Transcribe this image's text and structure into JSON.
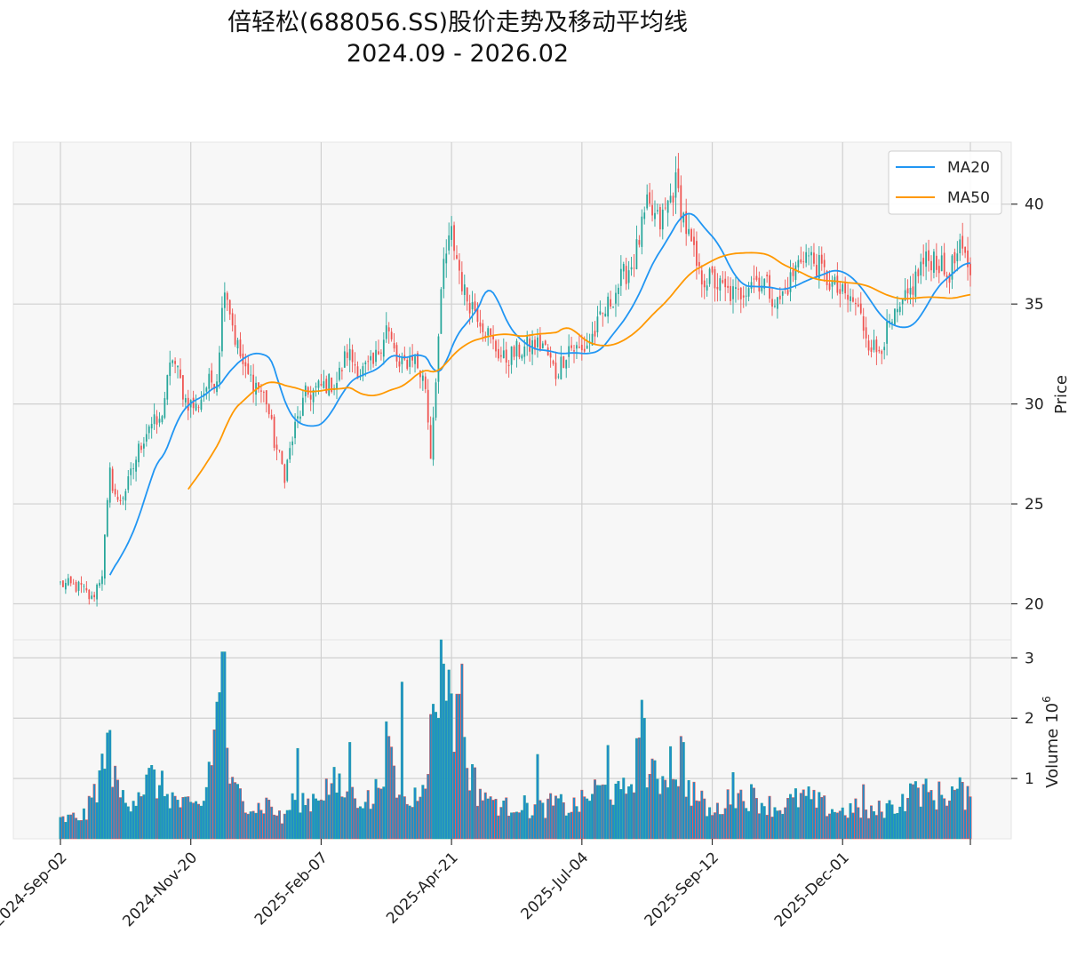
{
  "chart_data": {
    "type": "candlestick",
    "title": "倍轻松(688056.SS)股价走势及移动平均线",
    "subtitle": "2024.09 - 2026.02",
    "ylabel": "Price",
    "volume_label": "Volume",
    "volume_exponent_base": "10",
    "volume_exponent": "6",
    "ylim": [
      18.2,
      43.1
    ],
    "yticks": [
      "20",
      "25",
      "30",
      "35",
      "40"
    ],
    "volume_ylim": [
      0,
      3.3
    ],
    "volume_yticks": [
      "1",
      "2",
      "3"
    ],
    "x_tick_labels": [
      "2024-Sep-02",
      "2024-Nov-20",
      "2025-Feb-07",
      "2025-Apr-21",
      "2025-Jul-04",
      "2025-Sep-12",
      "2025-Dec-01"
    ],
    "x_tick_index": [
      0,
      50,
      100,
      150,
      200,
      250,
      300
    ],
    "n_trading_days": 350,
    "legend": [
      "MA20",
      "MA50"
    ],
    "legend_position": "top-right",
    "colors": {
      "up": "#26a69a",
      "down": "#ef5350",
      "ma20": "#2196f3",
      "ma50": "#ff9800",
      "volume": "#1f8ec9",
      "grid": "#d0d0d0",
      "panel": "#f7f7f7"
    },
    "close_anchors": [
      [
        0,
        21.0
      ],
      [
        8,
        20.8
      ],
      [
        12,
        20.2
      ],
      [
        16,
        21.6
      ],
      [
        19,
        26.5
      ],
      [
        22,
        25.0
      ],
      [
        26,
        26.0
      ],
      [
        30,
        27.7
      ],
      [
        34,
        29.0
      ],
      [
        38,
        29.0
      ],
      [
        43,
        32.4
      ],
      [
        48,
        30.2
      ],
      [
        52,
        29.8
      ],
      [
        56,
        30.9
      ],
      [
        60,
        31.4
      ],
      [
        63,
        36.2
      ],
      [
        67,
        33.3
      ],
      [
        71,
        31.5
      ],
      [
        75,
        31.0
      ],
      [
        79,
        30.2
      ],
      [
        82,
        28.1
      ],
      [
        86,
        26.5
      ],
      [
        90,
        28.8
      ],
      [
        94,
        30.4
      ],
      [
        98,
        30.7
      ],
      [
        102,
        31.0
      ],
      [
        106,
        31.1
      ],
      [
        110,
        32.6
      ],
      [
        115,
        31.6
      ],
      [
        120,
        31.9
      ],
      [
        125,
        33.9
      ],
      [
        130,
        31.7
      ],
      [
        135,
        32.5
      ],
      [
        140,
        30.9
      ],
      [
        142,
        27.5
      ],
      [
        144,
        31.5
      ],
      [
        147,
        37.0
      ],
      [
        150,
        38.5
      ],
      [
        155,
        35.5
      ],
      [
        160,
        34.6
      ],
      [
        165,
        33.2
      ],
      [
        170,
        32.2
      ],
      [
        175,
        32.6
      ],
      [
        180,
        32.9
      ],
      [
        185,
        33.0
      ],
      [
        190,
        31.5
      ],
      [
        195,
        32.9
      ],
      [
        200,
        32.6
      ],
      [
        205,
        33.6
      ],
      [
        210,
        34.9
      ],
      [
        215,
        36.2
      ],
      [
        220,
        37.2
      ],
      [
        225,
        39.8
      ],
      [
        230,
        39.0
      ],
      [
        236,
        41.0
      ],
      [
        240,
        38.8
      ],
      [
        245,
        36.4
      ],
      [
        250,
        36.2
      ],
      [
        255,
        35.6
      ],
      [
        260,
        35.4
      ],
      [
        265,
        36.3
      ],
      [
        270,
        36.1
      ],
      [
        275,
        35.0
      ],
      [
        280,
        36.2
      ],
      [
        285,
        37.6
      ],
      [
        290,
        37.0
      ],
      [
        295,
        36.1
      ],
      [
        300,
        35.4
      ],
      [
        305,
        35.0
      ],
      [
        310,
        33.2
      ],
      [
        313,
        32.6
      ],
      [
        318,
        33.8
      ],
      [
        322,
        34.6
      ],
      [
        326,
        35.6
      ],
      [
        330,
        36.9
      ],
      [
        335,
        37.4
      ],
      [
        340,
        36.4
      ],
      [
        345,
        37.6
      ],
      [
        349,
        36.8
      ]
    ],
    "volume_anchors": [
      [
        0,
        0.3
      ],
      [
        10,
        0.4
      ],
      [
        18,
        1.4
      ],
      [
        20,
        1.0
      ],
      [
        25,
        0.6
      ],
      [
        30,
        0.8
      ],
      [
        35,
        1.0
      ],
      [
        40,
        0.8
      ],
      [
        45,
        0.6
      ],
      [
        50,
        0.5
      ],
      [
        55,
        0.6
      ],
      [
        62,
        2.6
      ],
      [
        64,
        1.2
      ],
      [
        66,
        0.8
      ],
      [
        70,
        0.7
      ],
      [
        75,
        0.5
      ],
      [
        80,
        0.6
      ],
      [
        85,
        0.3
      ],
      [
        90,
        0.7
      ],
      [
        95,
        0.6
      ],
      [
        100,
        0.8
      ],
      [
        105,
        0.9
      ],
      [
        110,
        0.7
      ],
      [
        115,
        0.7
      ],
      [
        120,
        0.6
      ],
      [
        125,
        1.5
      ],
      [
        130,
        0.6
      ],
      [
        135,
        0.6
      ],
      [
        140,
        1.2
      ],
      [
        143,
        1.9
      ],
      [
        146,
        2.9
      ],
      [
        148,
        2.5
      ],
      [
        152,
        1.8
      ],
      [
        156,
        1.3
      ],
      [
        160,
        0.8
      ],
      [
        165,
        0.7
      ],
      [
        170,
        0.5
      ],
      [
        175,
        0.6
      ],
      [
        180,
        0.5
      ],
      [
        185,
        0.5
      ],
      [
        190,
        0.6
      ],
      [
        195,
        0.5
      ],
      [
        200,
        0.6
      ],
      [
        205,
        0.8
      ],
      [
        210,
        0.8
      ],
      [
        215,
        0.7
      ],
      [
        218,
        0.9
      ],
      [
        222,
        1.4
      ],
      [
        226,
        1.0
      ],
      [
        230,
        1.0
      ],
      [
        234,
        1.3
      ],
      [
        238,
        1.1
      ],
      [
        242,
        0.8
      ],
      [
        246,
        0.6
      ],
      [
        250,
        0.4
      ],
      [
        255,
        0.6
      ],
      [
        260,
        0.7
      ],
      [
        265,
        0.7
      ],
      [
        270,
        0.6
      ],
      [
        275,
        0.5
      ],
      [
        280,
        0.6
      ],
      [
        285,
        0.7
      ],
      [
        290,
        0.6
      ],
      [
        295,
        0.5
      ],
      [
        300,
        0.45
      ],
      [
        305,
        0.5
      ],
      [
        310,
        0.4
      ],
      [
        315,
        0.5
      ],
      [
        320,
        0.55
      ],
      [
        325,
        0.7
      ],
      [
        330,
        0.8
      ],
      [
        335,
        0.7
      ],
      [
        340,
        0.75
      ],
      [
        345,
        0.8
      ],
      [
        349,
        0.6
      ]
    ],
    "volume_spikes": [
      [
        19,
        1.8
      ],
      [
        62,
        3.1
      ],
      [
        63,
        3.1
      ],
      [
        91,
        1.5
      ],
      [
        111,
        1.6
      ],
      [
        126,
        1.7
      ],
      [
        131,
        2.6
      ],
      [
        144,
        2.1
      ],
      [
        145,
        2.0
      ],
      [
        146,
        3.3
      ],
      [
        147,
        2.9
      ],
      [
        149,
        2.8
      ],
      [
        152,
        2.4
      ],
      [
        153,
        2.4
      ],
      [
        154,
        2.9
      ],
      [
        165,
        0.7
      ],
      [
        183,
        1.4
      ],
      [
        210,
        1.55
      ],
      [
        223,
        2.3
      ],
      [
        224,
        2.0
      ],
      [
        238,
        1.7
      ],
      [
        239,
        1.6
      ],
      [
        258,
        1.1
      ],
      [
        308,
        0.9
      ],
      [
        327,
        0.9
      ]
    ],
    "ma20_start_index": 19,
    "ma50_start_index": 49
  }
}
